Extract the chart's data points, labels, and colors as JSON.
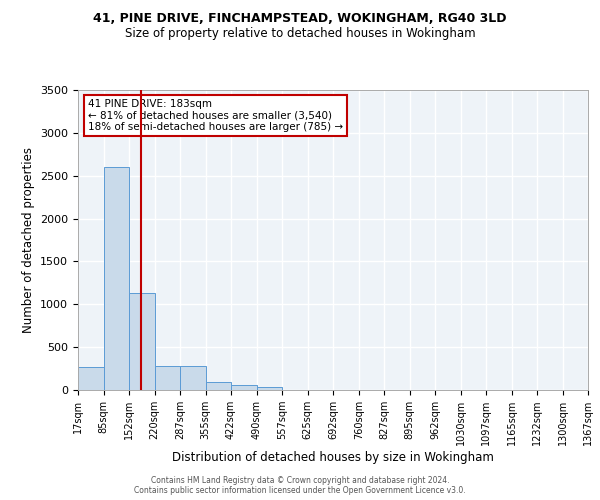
{
  "title_line1": "41, PINE DRIVE, FINCHAMPSTEAD, WOKINGHAM, RG40 3LD",
  "title_line2": "Size of property relative to detached houses in Wokingham",
  "xlabel": "Distribution of detached houses by size in Wokingham",
  "ylabel": "Number of detached properties",
  "annotation_line1": "41 PINE DRIVE: 183sqm",
  "annotation_line2": "← 81% of detached houses are smaller (3,540)",
  "annotation_line3": "18% of semi-detached houses are larger (785) →",
  "property_size": 183,
  "vline_x": 183,
  "bar_color": "#c9daea",
  "bar_edge_color": "#5b9bd5",
  "vline_color": "#c00000",
  "annotation_box_color": "#c00000",
  "background_color": "#eef3f8",
  "grid_color": "#ffffff",
  "bin_edges": [
    17,
    85,
    152,
    220,
    287,
    355,
    422,
    490,
    557,
    625,
    692,
    760,
    827,
    895,
    962,
    1030,
    1097,
    1165,
    1232,
    1300,
    1367
  ],
  "bin_labels": [
    "17sqm",
    "85sqm",
    "152sqm",
    "220sqm",
    "287sqm",
    "355sqm",
    "422sqm",
    "490sqm",
    "557sqm",
    "625sqm",
    "692sqm",
    "760sqm",
    "827sqm",
    "895sqm",
    "962sqm",
    "1030sqm",
    "1097sqm",
    "1165sqm",
    "1232sqm",
    "1300sqm",
    "1367sqm"
  ],
  "bar_heights": [
    270,
    2600,
    1130,
    285,
    285,
    95,
    60,
    35,
    0,
    0,
    0,
    0,
    0,
    0,
    0,
    0,
    0,
    0,
    0,
    0
  ],
  "ylim": [
    0,
    3500
  ],
  "yticks": [
    0,
    500,
    1000,
    1500,
    2000,
    2500,
    3000,
    3500
  ],
  "footer_line1": "Contains HM Land Registry data © Crown copyright and database right 2024.",
  "footer_line2": "Contains public sector information licensed under the Open Government Licence v3.0."
}
